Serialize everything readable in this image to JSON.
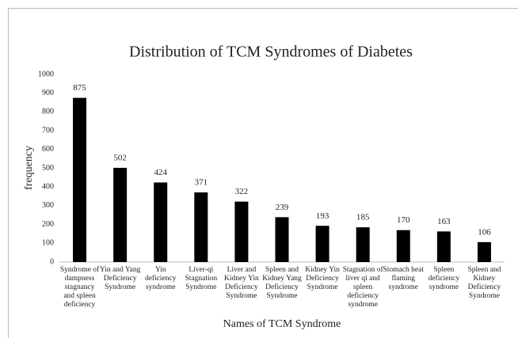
{
  "chart_data": {
    "type": "bar",
    "title": "Distribution of TCM Syndromes of Diabetes",
    "y_label": "frequency",
    "x_label": "Names of TCM Syndrome",
    "categories": [
      "Syndrome of dampness stagnancy and spleen deficiency",
      "Yin and Yang Deficiency Syndrome",
      "Yin deficiency syndrome",
      "Liver-qi Stagnation Syndrome",
      "Liver and Kidney Yin Deficiency Syndrome",
      "Spleen and Kidney Yang Deficiency Syndrome",
      "Kidney Yin Deficiency Syndrome",
      "Stagnation of liver qi and spleen deficiency syndrome",
      "Stomach heat flaming syndrome",
      "Spleen deficiency syndrome",
      "Spleen and Kidney Deficiency Syndrome"
    ],
    "values": [
      875,
      502,
      424,
      371,
      322,
      239,
      193,
      185,
      170,
      163,
      106
    ],
    "color": "#000000",
    "ylim": [
      0,
      1000
    ],
    "yticks": [
      0,
      100,
      200,
      300,
      400,
      500,
      600,
      700,
      800,
      900,
      1000
    ],
    "grid": false
  }
}
